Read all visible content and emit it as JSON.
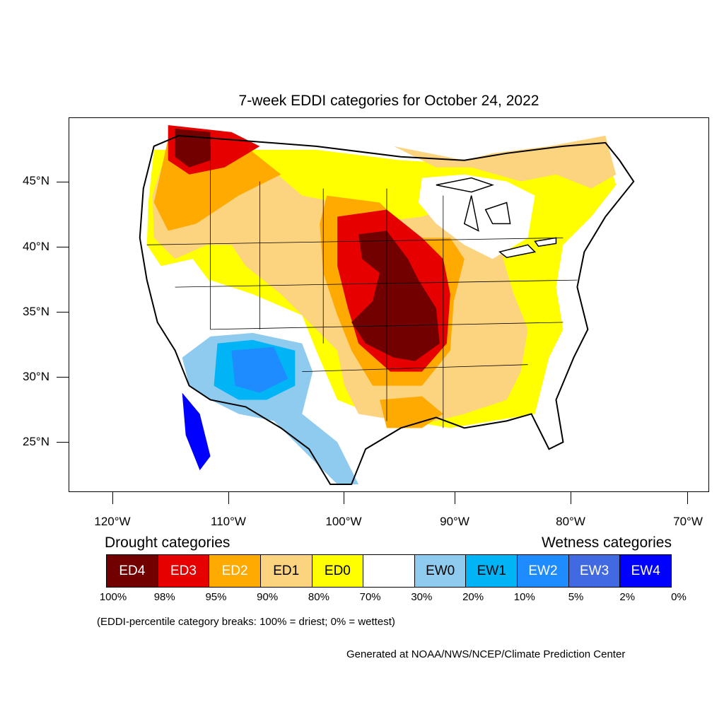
{
  "title": "7-week EDDI categories for October 24, 2022",
  "map": {
    "lat_labels": [
      "45°N",
      "40°N",
      "35°N",
      "30°N",
      "25°N"
    ],
    "lon_labels": [
      "120°W",
      "110°W",
      "100°W",
      "90°W",
      "80°W",
      "70°W"
    ]
  },
  "legend": {
    "drought_heading": "Drought categories",
    "wetness_heading": "Wetness categories",
    "categories": [
      {
        "label": "ED4",
        "color": "#730000",
        "text_color": "#ffffff"
      },
      {
        "label": "ED3",
        "color": "#e60000",
        "text_color": "#ffffff"
      },
      {
        "label": "ED2",
        "color": "#ffaa00",
        "text_color": "#ffffff"
      },
      {
        "label": "ED1",
        "color": "#fcd37f",
        "text_color": "#000000"
      },
      {
        "label": "ED0",
        "color": "#ffff00",
        "text_color": "#000000"
      },
      {
        "label": "",
        "color": "#ffffff",
        "text_color": "#000000"
      },
      {
        "label": "EW0",
        "color": "#8ecbef",
        "text_color": "#000000"
      },
      {
        "label": "EW1",
        "color": "#00b4f5",
        "text_color": "#000000"
      },
      {
        "label": "EW2",
        "color": "#1e8cff",
        "text_color": "#ffffff"
      },
      {
        "label": "EW3",
        "color": "#4169e1",
        "text_color": "#ffffff"
      },
      {
        "label": "EW4",
        "color": "#0000ff",
        "text_color": "#ffffff"
      }
    ],
    "breaks": [
      "100%",
      "98%",
      "95%",
      "90%",
      "80%",
      "70%",
      "30%",
      "20%",
      "10%",
      "5%",
      "2%",
      "0%"
    ]
  },
  "note": "(EDDI-percentile category breaks: 100% = driest; 0% = wettest)",
  "credit": "Generated at NOAA/NWS/NCEP/Climate Prediction Center"
}
